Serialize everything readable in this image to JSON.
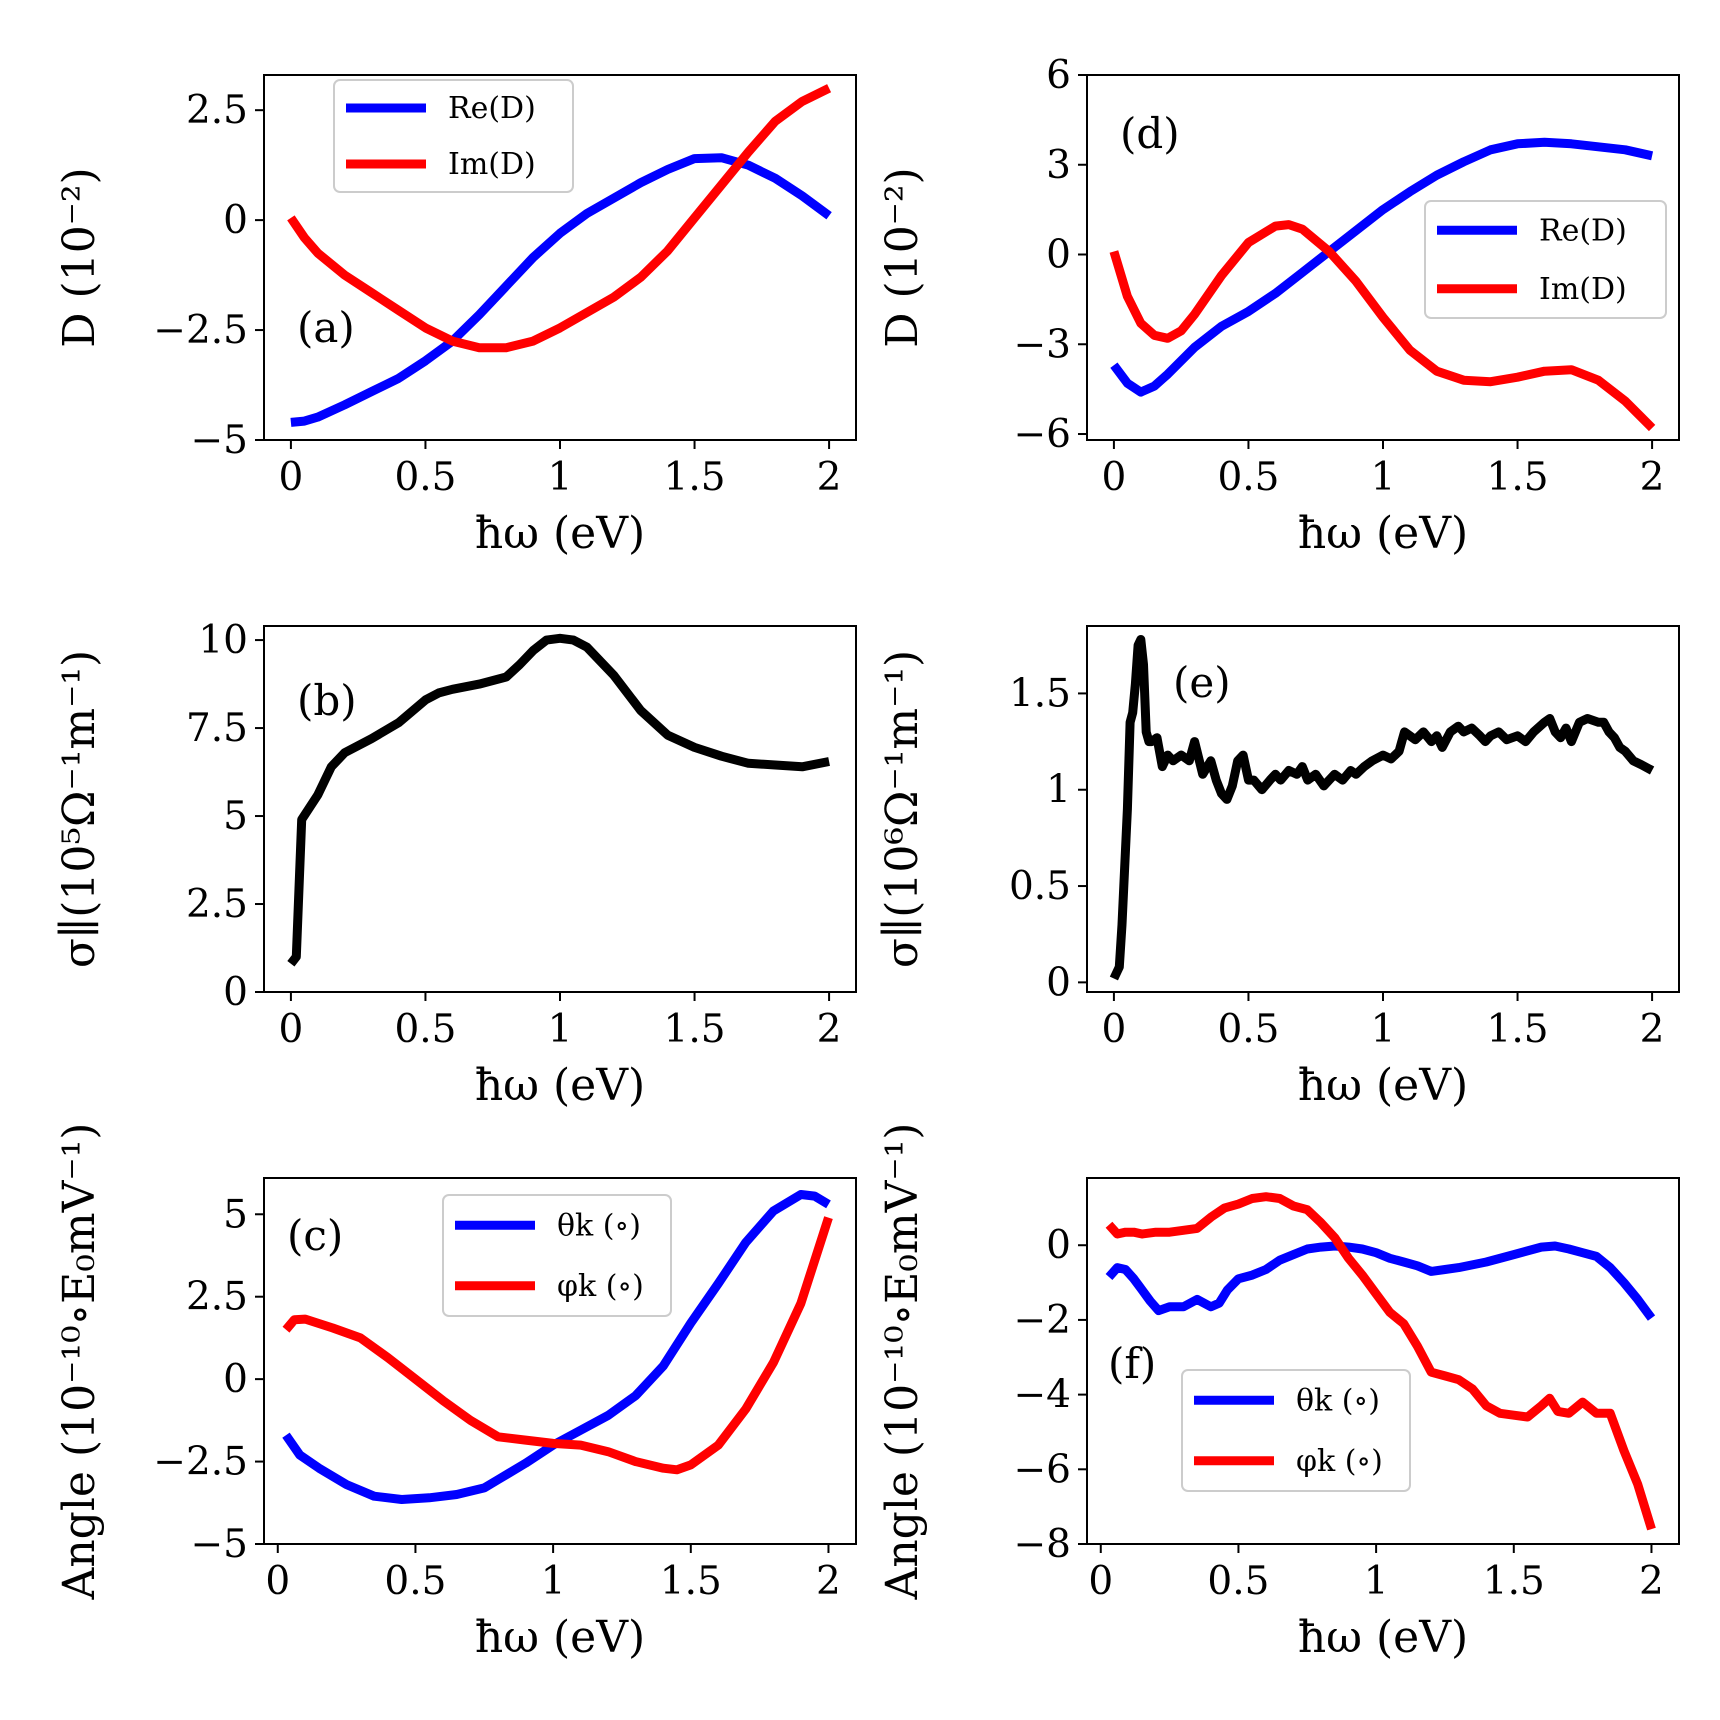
{
  "colors": {
    "blue": "#0000ff",
    "red": "#ff0000",
    "black": "#000000"
  },
  "chart_data": [
    {
      "id": "a",
      "type": "line",
      "tag": "(a)",
      "xlabel": "ħω (eV)",
      "ylabel": "D (10⁻²)",
      "xlim": [
        -0.1,
        2.1
      ],
      "ylim": [
        -5,
        3.3
      ],
      "xticks": [
        0,
        0.5,
        1,
        1.5,
        2
      ],
      "xtick_labels": [
        "0",
        "0.5",
        "1",
        "1.5",
        "2"
      ],
      "yticks": [
        -5,
        -2.5,
        0,
        2.5
      ],
      "ytick_labels": [
        "−5",
        "−2.5",
        "0",
        "2.5"
      ],
      "legend": {
        "position": "top-center"
      },
      "series": [
        {
          "name": "Re(D)",
          "color": "#0000ff",
          "x": [
            0,
            0.05,
            0.1,
            0.2,
            0.3,
            0.4,
            0.5,
            0.6,
            0.7,
            0.8,
            0.9,
            1.0,
            1.1,
            1.2,
            1.3,
            1.4,
            1.5,
            1.6,
            1.7,
            1.8,
            1.9,
            2.0
          ],
          "y": [
            -4.6,
            -4.57,
            -4.48,
            -4.2,
            -3.9,
            -3.6,
            -3.2,
            -2.75,
            -2.15,
            -1.5,
            -0.85,
            -0.3,
            0.15,
            0.5,
            0.85,
            1.15,
            1.4,
            1.42,
            1.25,
            0.95,
            0.55,
            0.1
          ]
        },
        {
          "name": "Im(D)",
          "color": "#ff0000",
          "x": [
            0,
            0.05,
            0.1,
            0.2,
            0.3,
            0.4,
            0.5,
            0.6,
            0.7,
            0.8,
            0.9,
            1.0,
            1.1,
            1.2,
            1.3,
            1.4,
            1.5,
            1.6,
            1.7,
            1.8,
            1.9,
            2.0
          ],
          "y": [
            0.05,
            -0.4,
            -0.75,
            -1.25,
            -1.65,
            -2.05,
            -2.45,
            -2.75,
            -2.9,
            -2.9,
            -2.75,
            -2.45,
            -2.1,
            -1.75,
            -1.3,
            -0.7,
            0.05,
            0.8,
            1.55,
            2.25,
            2.7,
            3.0
          ]
        }
      ]
    },
    {
      "id": "b",
      "type": "line",
      "tag": "(b)",
      "xlabel": "ħω (eV)",
      "ylabel": "σ∥(10⁵Ω⁻¹m⁻¹)",
      "xlim": [
        -0.1,
        2.1
      ],
      "ylim": [
        0,
        10.4
      ],
      "xticks": [
        0,
        0.5,
        1,
        1.5,
        2
      ],
      "xtick_labels": [
        "0",
        "0.5",
        "1",
        "1.5",
        "2"
      ],
      "yticks": [
        0,
        2.5,
        5,
        7.5,
        10
      ],
      "ytick_labels": [
        "0",
        "2.5",
        "5",
        "7.5",
        "10"
      ],
      "series": [
        {
          "name": "sigma",
          "color": "#000000",
          "x": [
            0,
            0.02,
            0.04,
            0.1,
            0.15,
            0.2,
            0.3,
            0.4,
            0.5,
            0.55,
            0.6,
            0.7,
            0.8,
            0.85,
            0.9,
            0.95,
            1.0,
            1.05,
            1.1,
            1.2,
            1.3,
            1.4,
            1.5,
            1.6,
            1.7,
            1.8,
            1.9,
            2.0
          ],
          "y": [
            0.8,
            1.0,
            4.9,
            5.6,
            6.4,
            6.8,
            7.2,
            7.65,
            8.3,
            8.5,
            8.6,
            8.75,
            8.95,
            9.3,
            9.7,
            10.0,
            10.05,
            10.0,
            9.8,
            9.0,
            8.0,
            7.3,
            6.95,
            6.7,
            6.5,
            6.45,
            6.4,
            6.55
          ]
        }
      ]
    },
    {
      "id": "c",
      "type": "line",
      "tag": "(c)",
      "xlabel": "ħω (eV)",
      "ylabel": "Angle (10⁻¹⁰∘E₀mV⁻¹)",
      "xlim": [
        -0.05,
        2.1
      ],
      "ylim": [
        -5,
        6.1
      ],
      "xticks": [
        0,
        0.5,
        1,
        1.5,
        2
      ],
      "xtick_labels": [
        "0",
        "0.5",
        "1",
        "1.5",
        "2"
      ],
      "yticks": [
        -5,
        -2.5,
        0,
        2.5,
        5
      ],
      "ytick_labels": [
        "−5",
        "−2.5",
        "0",
        "2.5",
        "5"
      ],
      "legend": {
        "position": "top-right"
      },
      "series": [
        {
          "name": "θk (∘)",
          "color": "#0000ff",
          "x": [
            0.03,
            0.08,
            0.15,
            0.25,
            0.35,
            0.45,
            0.55,
            0.65,
            0.75,
            0.8,
            0.9,
            1.0,
            1.1,
            1.2,
            1.3,
            1.4,
            1.5,
            1.6,
            1.7,
            1.8,
            1.9,
            1.95,
            2.0
          ],
          "y": [
            -1.7,
            -2.3,
            -2.7,
            -3.2,
            -3.55,
            -3.65,
            -3.6,
            -3.5,
            -3.3,
            -3.05,
            -2.55,
            -2.0,
            -1.55,
            -1.1,
            -0.5,
            0.4,
            1.7,
            2.9,
            4.15,
            5.1,
            5.6,
            5.55,
            5.3
          ]
        },
        {
          "name": "φk (∘)",
          "color": "#ff0000",
          "x": [
            0.03,
            0.06,
            0.1,
            0.2,
            0.3,
            0.4,
            0.5,
            0.6,
            0.7,
            0.8,
            0.9,
            1.0,
            1.1,
            1.2,
            1.3,
            1.4,
            1.45,
            1.5,
            1.6,
            1.7,
            1.8,
            1.9,
            2.0
          ],
          "y": [
            1.5,
            1.8,
            1.82,
            1.55,
            1.25,
            0.65,
            0.0,
            -0.65,
            -1.25,
            -1.75,
            -1.85,
            -1.95,
            -2.0,
            -2.2,
            -2.5,
            -2.7,
            -2.75,
            -2.6,
            -2.0,
            -0.9,
            0.5,
            2.3,
            4.9
          ]
        }
      ]
    },
    {
      "id": "d",
      "type": "line",
      "tag": "(d)",
      "xlabel": "ħω (eV)",
      "ylabel": "D (10⁻²)",
      "xlim": [
        -0.1,
        2.1
      ],
      "ylim": [
        -6.2,
        6
      ],
      "xticks": [
        0,
        0.5,
        1,
        1.5,
        2
      ],
      "xtick_labels": [
        "0",
        "0.5",
        "1",
        "1.5",
        "2"
      ],
      "yticks": [
        -6,
        -3,
        0,
        3,
        6
      ],
      "ytick_labels": [
        "−6",
        "−3",
        "0",
        "3",
        "6"
      ],
      "legend": {
        "position": "right"
      },
      "series": [
        {
          "name": "Re(D)",
          "color": "#0000ff",
          "x": [
            0,
            0.05,
            0.1,
            0.15,
            0.2,
            0.3,
            0.4,
            0.5,
            0.6,
            0.7,
            0.8,
            0.9,
            1.0,
            1.1,
            1.2,
            1.3,
            1.4,
            1.5,
            1.6,
            1.7,
            1.8,
            1.9,
            2.0
          ],
          "y": [
            -3.7,
            -4.3,
            -4.6,
            -4.4,
            -4.0,
            -3.1,
            -2.4,
            -1.9,
            -1.3,
            -0.6,
            0.1,
            0.8,
            1.5,
            2.1,
            2.65,
            3.1,
            3.5,
            3.7,
            3.75,
            3.7,
            3.6,
            3.5,
            3.3
          ]
        },
        {
          "name": "Im(D)",
          "color": "#ff0000",
          "x": [
            0,
            0.05,
            0.1,
            0.15,
            0.2,
            0.25,
            0.3,
            0.4,
            0.5,
            0.6,
            0.65,
            0.7,
            0.8,
            0.9,
            1.0,
            1.1,
            1.2,
            1.3,
            1.4,
            1.5,
            1.6,
            1.7,
            1.8,
            1.9,
            2.0
          ],
          "y": [
            0.1,
            -1.4,
            -2.3,
            -2.7,
            -2.8,
            -2.55,
            -2.0,
            -0.7,
            0.4,
            0.95,
            1.0,
            0.85,
            0.1,
            -0.9,
            -2.1,
            -3.2,
            -3.9,
            -4.2,
            -4.25,
            -4.1,
            -3.9,
            -3.85,
            -4.2,
            -4.9,
            -5.8
          ]
        }
      ]
    },
    {
      "id": "e",
      "type": "line",
      "tag": "(e)",
      "xlabel": "ħω (eV)",
      "ylabel": "σ∥(10⁶Ω⁻¹m⁻¹)",
      "xlim": [
        -0.1,
        2.1
      ],
      "ylim": [
        -0.05,
        1.85
      ],
      "xticks": [
        0,
        0.5,
        1,
        1.5,
        2
      ],
      "xtick_labels": [
        "0",
        "0.5",
        "1",
        "1.5",
        "2"
      ],
      "yticks": [
        0,
        0.5,
        1,
        1.5
      ],
      "ytick_labels": [
        "0",
        "0.5",
        "1",
        "1.5"
      ],
      "series": [
        {
          "name": "sigma",
          "color": "#000000",
          "x": [
            0,
            0.02,
            0.03,
            0.05,
            0.06,
            0.07,
            0.08,
            0.09,
            0.1,
            0.11,
            0.12,
            0.13,
            0.14,
            0.16,
            0.18,
            0.2,
            0.22,
            0.25,
            0.28,
            0.3,
            0.33,
            0.36,
            0.38,
            0.4,
            0.42,
            0.44,
            0.46,
            0.48,
            0.5,
            0.52,
            0.55,
            0.58,
            0.6,
            0.62,
            0.65,
            0.68,
            0.7,
            0.72,
            0.75,
            0.78,
            0.8,
            0.82,
            0.85,
            0.88,
            0.9,
            0.93,
            0.96,
            1.0,
            1.03,
            1.06,
            1.08,
            1.1,
            1.12,
            1.15,
            1.18,
            1.2,
            1.22,
            1.25,
            1.28,
            1.3,
            1.33,
            1.36,
            1.38,
            1.4,
            1.43,
            1.46,
            1.5,
            1.53,
            1.56,
            1.6,
            1.62,
            1.64,
            1.66,
            1.68,
            1.7,
            1.73,
            1.76,
            1.8,
            1.82,
            1.84,
            1.86,
            1.88,
            1.9,
            1.93,
            1.96,
            2.0
          ],
          "y": [
            0.02,
            0.08,
            0.3,
            0.9,
            1.35,
            1.4,
            1.55,
            1.75,
            1.78,
            1.65,
            1.3,
            1.25,
            1.25,
            1.27,
            1.12,
            1.18,
            1.15,
            1.18,
            1.15,
            1.25,
            1.08,
            1.15,
            1.05,
            0.98,
            0.95,
            1.02,
            1.15,
            1.18,
            1.05,
            1.05,
            1.0,
            1.05,
            1.08,
            1.05,
            1.1,
            1.08,
            1.12,
            1.05,
            1.08,
            1.02,
            1.05,
            1.08,
            1.05,
            1.1,
            1.08,
            1.12,
            1.15,
            1.18,
            1.16,
            1.2,
            1.3,
            1.28,
            1.26,
            1.3,
            1.25,
            1.28,
            1.22,
            1.3,
            1.33,
            1.3,
            1.32,
            1.28,
            1.25,
            1.28,
            1.3,
            1.26,
            1.28,
            1.25,
            1.3,
            1.35,
            1.37,
            1.3,
            1.27,
            1.32,
            1.25,
            1.35,
            1.37,
            1.35,
            1.35,
            1.3,
            1.27,
            1.22,
            1.2,
            1.15,
            1.13,
            1.1
          ]
        }
      ]
    },
    {
      "id": "f",
      "type": "line",
      "tag": "(f)",
      "xlabel": "ħω (eV)",
      "ylabel": "Angle (10⁻¹⁰∘E₀mV⁻¹)",
      "xlim": [
        -0.05,
        2.1
      ],
      "ylim": [
        -8,
        1.8
      ],
      "xticks": [
        0,
        0.5,
        1,
        1.5,
        2
      ],
      "xtick_labels": [
        "0",
        "0.5",
        "1",
        "1.5",
        "2"
      ],
      "yticks": [
        -8,
        -6,
        -4,
        -2,
        0
      ],
      "ytick_labels": [
        "−8",
        "−6",
        "−4",
        "−2",
        "0"
      ],
      "legend": {
        "position": "lower-center"
      },
      "series": [
        {
          "name": "θk (∘)",
          "color": "#0000ff",
          "x": [
            0.03,
            0.06,
            0.09,
            0.12,
            0.15,
            0.18,
            0.21,
            0.25,
            0.3,
            0.35,
            0.4,
            0.43,
            0.46,
            0.5,
            0.55,
            0.6,
            0.65,
            0.7,
            0.75,
            0.8,
            0.85,
            0.9,
            0.95,
            1.0,
            1.05,
            1.1,
            1.15,
            1.2,
            1.25,
            1.3,
            1.4,
            1.5,
            1.6,
            1.65,
            1.7,
            1.75,
            1.8,
            1.85,
            1.9,
            1.95,
            2.0
          ],
          "y": [
            -0.85,
            -0.6,
            -0.65,
            -0.9,
            -1.2,
            -1.5,
            -1.75,
            -1.65,
            -1.65,
            -1.45,
            -1.65,
            -1.55,
            -1.2,
            -0.9,
            -0.8,
            -0.65,
            -0.4,
            -0.25,
            -0.1,
            -0.05,
            -0.02,
            -0.05,
            -0.1,
            -0.2,
            -0.35,
            -0.45,
            -0.55,
            -0.7,
            -0.65,
            -0.6,
            -0.45,
            -0.25,
            -0.05,
            -0.02,
            -0.1,
            -0.2,
            -0.3,
            -0.6,
            -1.0,
            -1.45,
            -1.95
          ]
        },
        {
          "name": "φk (∘)",
          "color": "#ff0000",
          "x": [
            0.03,
            0.06,
            0.09,
            0.12,
            0.15,
            0.2,
            0.25,
            0.3,
            0.35,
            0.4,
            0.45,
            0.5,
            0.55,
            0.6,
            0.65,
            0.7,
            0.75,
            0.8,
            0.85,
            0.9,
            0.95,
            1.0,
            1.05,
            1.1,
            1.15,
            1.2,
            1.25,
            1.3,
            1.35,
            1.4,
            1.45,
            1.5,
            1.55,
            1.6,
            1.63,
            1.66,
            1.7,
            1.75,
            1.8,
            1.85,
            1.9,
            1.95,
            2.0
          ],
          "y": [
            0.55,
            0.3,
            0.35,
            0.35,
            0.3,
            0.35,
            0.35,
            0.4,
            0.45,
            0.75,
            1.0,
            1.1,
            1.25,
            1.3,
            1.25,
            1.05,
            0.95,
            0.6,
            0.2,
            -0.35,
            -0.8,
            -1.3,
            -1.8,
            -2.1,
            -2.7,
            -3.4,
            -3.5,
            -3.6,
            -3.85,
            -4.3,
            -4.5,
            -4.55,
            -4.6,
            -4.3,
            -4.1,
            -4.45,
            -4.5,
            -4.2,
            -4.5,
            -4.5,
            -5.5,
            -6.4,
            -7.6
          ]
        }
      ]
    }
  ]
}
